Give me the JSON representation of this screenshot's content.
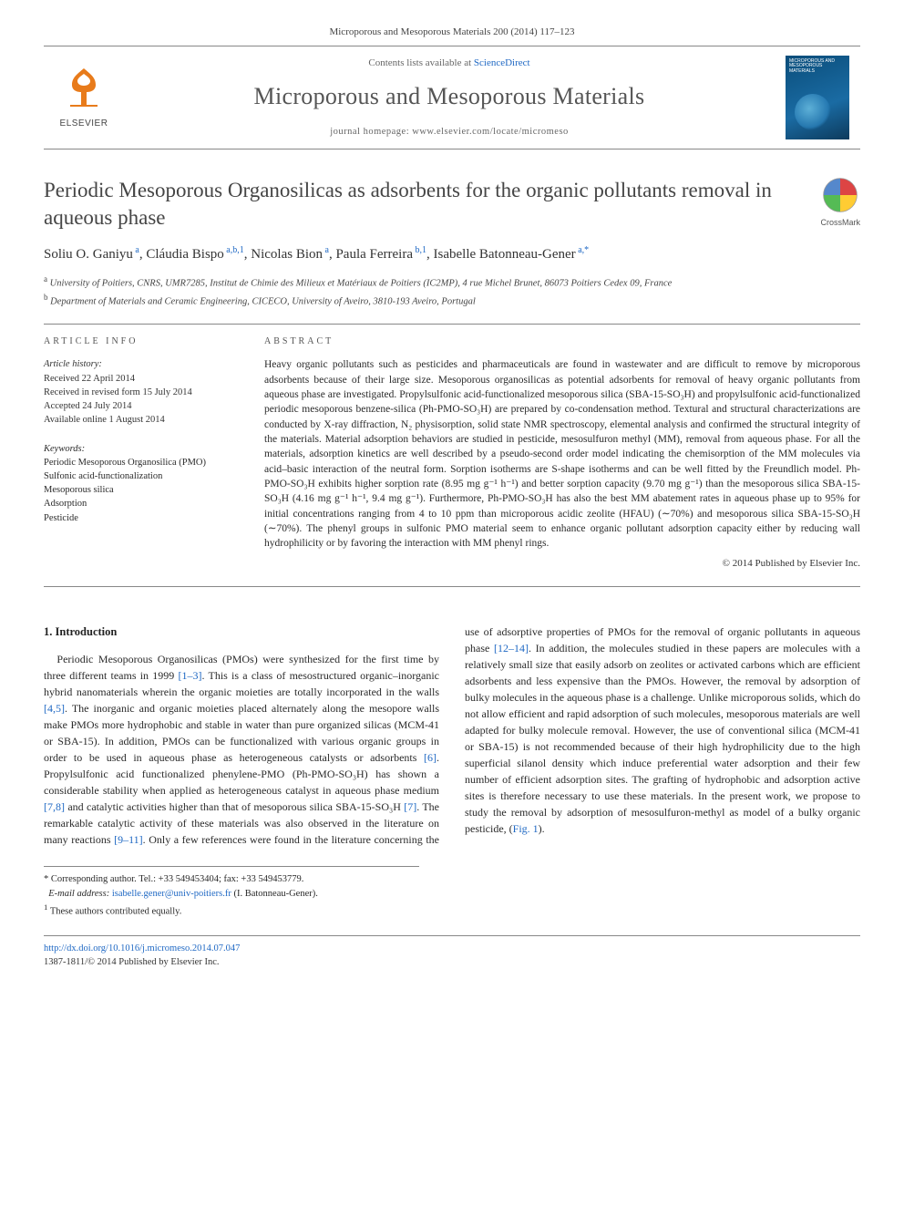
{
  "citation_header": "Microporous and Mesoporous Materials 200 (2014) 117–123",
  "masthead": {
    "contents_prefix": "Contents lists available at ",
    "contents_link": "ScienceDirect",
    "journal": "Microporous and Mesoporous Materials",
    "homepage_prefix": "journal homepage: ",
    "homepage_url": "www.elsevier.com/locate/micromeso",
    "publisher": "ELSEVIER",
    "cover_caption": "MICROPOROUS AND MESOPOROUS MATERIALS"
  },
  "title": "Periodic Mesoporous Organosilicas as adsorbents for the organic pollutants removal in aqueous phase",
  "crossmark_label": "CrossMark",
  "authors": [
    {
      "name": "Soliu O. Ganiyu",
      "marks": "a"
    },
    {
      "name": "Cláudia Bispo",
      "marks": "a,b,1"
    },
    {
      "name": "Nicolas Bion",
      "marks": "a"
    },
    {
      "name": "Paula Ferreira",
      "marks": "b,1"
    },
    {
      "name": "Isabelle Batonneau-Gener",
      "marks": "a,*"
    }
  ],
  "affiliations": {
    "a": "University of Poitiers, CNRS, UMR7285, Institut de Chimie des Milieux et Matériaux de Poitiers (IC2MP), 4 rue Michel Brunet, 86073 Poitiers Cedex 09, France",
    "b": "Department of Materials and Ceramic Engineering, CICECO, University of Aveiro, 3810-193 Aveiro, Portugal"
  },
  "article_info": {
    "heading": "article info",
    "history_head": "Article history:",
    "history": [
      "Received 22 April 2014",
      "Received in revised form 15 July 2014",
      "Accepted 24 July 2014",
      "Available online 1 August 2014"
    ],
    "keywords_head": "Keywords:",
    "keywords": [
      "Periodic Mesoporous Organosilica (PMO)",
      "Sulfonic acid-functionalization",
      "Mesoporous silica",
      "Adsorption",
      "Pesticide"
    ]
  },
  "abstract": {
    "heading": "abstract",
    "text": "Heavy organic pollutants such as pesticides and pharmaceuticals are found in wastewater and are difficult to remove by microporous adsorbents because of their large size. Mesoporous organosilicas as potential adsorbents for removal of heavy organic pollutants from aqueous phase are investigated. Propylsulfonic acid-functionalized mesoporous silica (SBA-15-SO₃H) and propylsulfonic acid-functionalized periodic mesoporous benzene-silica (Ph-PMO-SO₃H) are prepared by co-condensation method. Textural and structural characterizations are conducted by X-ray diffraction, N₂ physisorption, solid state NMR spectroscopy, elemental analysis and confirmed the structural integrity of the materials. Material adsorption behaviors are studied in pesticide, mesosulfuron methyl (MM), removal from aqueous phase. For all the materials, adsorption kinetics are well described by a pseudo-second order model indicating the chemisorption of the MM molecules via acid–basic interaction of the neutral form. Sorption isotherms are S-shape isotherms and can be well fitted by the Freundlich model. Ph-PMO-SO₃H exhibits higher sorption rate (8.95 mg g⁻¹ h⁻¹) and better sorption capacity (9.70 mg g⁻¹) than the mesoporous silica SBA-15-SO₃H (4.16 mg g⁻¹ h⁻¹, 9.4 mg g⁻¹). Furthermore, Ph-PMO-SO₃H has also the best MM abatement rates in aqueous phase up to 95% for initial concentrations ranging from 4 to 10 ppm than microporous acidic zeolite (HFAU) (∼70%) and mesoporous silica SBA-15-SO₃H (∼70%). The phenyl groups in sulfonic PMO material seem to enhance organic pollutant adsorption capacity either by reducing wall hydrophilicity or by favoring the interaction with MM phenyl rings.",
    "copyright": "© 2014 Published by Elsevier Inc."
  },
  "section1": {
    "heading": "1. Introduction",
    "p1a": "Periodic Mesoporous Organosilicas (PMOs) were synthesized for the first time by three different teams in 1999 ",
    "r1": "[1–3]",
    "p1b": ". This is a class of mesostructured organic–inorganic hybrid nanomaterials wherein the organic moieties are totally incorporated in the walls ",
    "r2": "[4,5]",
    "p1c": ". The inorganic and organic moieties placed alternately along the mesopore walls make PMOs more hydrophobic and stable in water than pure organized silicas (MCM-41 or SBA-15). In addition, PMOs can be functionalized with various organic groups in order to be used in aqueous phase as heterogeneous catalysts or adsorbents ",
    "r3": "[6]",
    "p1d": ". Propylsulfonic acid functionalized phenylene-PMO (Ph-PMO-SO₃H) has shown a considerable stability when applied as heterogeneous catalyst in aqueous phase medium ",
    "r4": "[7,8]",
    "p1e": " and catalytic activities higher than that of mesoporous silica SBA-15-SO₃H ",
    "r5": "[7]",
    "p1f": ". The remarkable catalytic activity of these materials was also",
    "p2a": "observed in the literature on many reactions ",
    "r6": "[9–11]",
    "p2b": ". Only a few references were found in the literature concerning the use of adsorptive properties of PMOs for the removal of organic pollutants in aqueous phase ",
    "r7": "[12–14]",
    "p2c": ". In addition, the molecules studied in these papers are molecules with a relatively small size that easily adsorb on zeolites or activated carbons which are efficient adsorbents and less expensive than the PMOs. However, the removal by adsorption of bulky molecules in the aqueous phase is a challenge. Unlike microporous solids, which do not allow efficient and rapid adsorption of such molecules, mesoporous materials are well adapted for bulky molecule removal. However, the use of conventional silica (MCM-41 or SBA-15) is not recommended because of their high hydrophilicity due to the high superficial silanol density which induce preferential water adsorption and their few number of efficient adsorption sites. The grafting of hydrophobic and adsorption active sites is therefore necessary to use these materials. In the present work, we propose to study the removal by adsorption of mesosulfuron-methyl as model of a bulky organic pesticide, (",
    "r8": "Fig. 1",
    "p2d": ")."
  },
  "footnotes": {
    "corr_label": "* Corresponding author. Tel.: +33 549453404; fax: +33 549453779.",
    "email_label": "E-mail address:",
    "email": "isabelle.gener@univ-poitiers.fr",
    "email_who": "(I. Batonneau-Gener).",
    "note1": "These authors contributed equally."
  },
  "bottom": {
    "doi_url": "http://dx.doi.org/10.1016/j.micromeso.2014.07.047",
    "issn_line": "1387-1811/© 2014 Published by Elsevier Inc."
  },
  "colors": {
    "link": "#2069c4",
    "rule": "#888888",
    "text": "#2a2a2a",
    "muted": "#555555"
  }
}
